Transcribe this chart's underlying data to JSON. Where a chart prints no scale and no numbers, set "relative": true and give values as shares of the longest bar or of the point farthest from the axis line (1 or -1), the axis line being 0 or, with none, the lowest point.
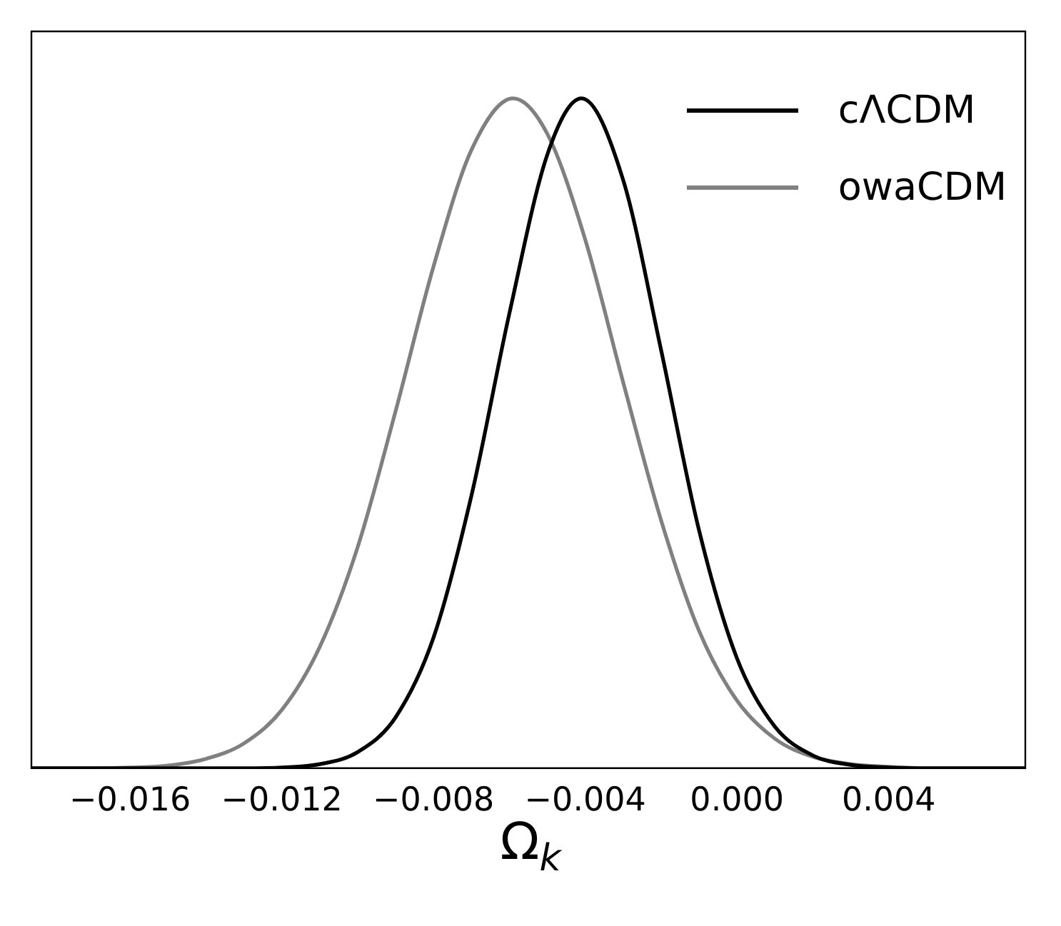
{
  "chart_data": {
    "type": "line",
    "relative": true,
    "xlabel": "Ω$_{k}$",
    "xlim": [
      -0.0186,
      0.0076
    ],
    "xticks": [
      {
        "value": -0.016,
        "label": "−0.016"
      },
      {
        "value": -0.012,
        "label": "−0.012"
      },
      {
        "value": -0.008,
        "label": "−0.008"
      },
      {
        "value": -0.004,
        "label": "−0.004"
      },
      {
        "value": 0,
        "label": "0.000"
      },
      0.004
    ],
    "series": [
      {
        "name": "cΛCDM",
        "color": "#000000",
        "x": [
          -0.0186,
          -0.017,
          -0.016,
          -0.015,
          -0.014,
          -0.013,
          -0.012,
          -0.011,
          -0.01,
          -0.009,
          -0.008,
          -0.007,
          -0.006,
          -0.005,
          -0.0041,
          -0.003,
          -0.002,
          -0.001,
          0,
          0.001,
          0.002,
          0.003,
          0.004,
          0.005,
          0.006,
          0.0076
        ],
        "values": [
          0,
          0,
          0,
          0,
          0,
          0,
          0.001,
          0.006,
          0.024,
          0.076,
          0.195,
          0.407,
          0.679,
          0.916,
          1,
          0.878,
          0.624,
          0.355,
          0.164,
          0.062,
          0.019,
          0.005,
          0.001,
          0,
          0,
          0
        ]
      },
      {
        "name": "owaCDM",
        "color": "#808080",
        "x": [
          -0.0186,
          -0.017,
          -0.016,
          -0.015,
          -0.014,
          -0.013,
          -0.012,
          -0.011,
          -0.01,
          -0.009,
          -0.008,
          -0.007,
          -0.0059,
          -0.005,
          -0.004,
          -0.003,
          -0.002,
          -0.001,
          0,
          0.001,
          0.002,
          0.003,
          0.004,
          0.005,
          0.006,
          0.0076
        ],
        "values": [
          0,
          0,
          0.001,
          0.004,
          0.014,
          0.037,
          0.087,
          0.181,
          0.33,
          0.533,
          0.749,
          0.923,
          1,
          0.947,
          0.789,
          0.576,
          0.37,
          0.205,
          0.101,
          0.044,
          0.017,
          0.006,
          0.002,
          0,
          0,
          0
        ]
      }
    ],
    "legend": "top right",
    "grid": false,
    "marker": "none",
    "line_style": "solid"
  }
}
